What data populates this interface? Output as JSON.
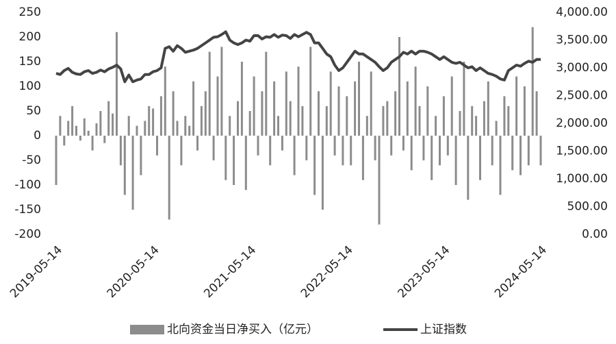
{
  "chart_data": {
    "type": "bar-line",
    "categories": [
      "2019-05-14",
      null,
      null,
      null,
      null,
      null,
      null,
      null,
      null,
      null,
      null,
      null,
      null,
      null,
      null,
      null,
      null,
      null,
      null,
      null,
      null,
      null,
      null,
      null,
      "2020-05-14",
      null,
      null,
      null,
      null,
      null,
      null,
      null,
      null,
      null,
      null,
      null,
      null,
      null,
      null,
      null,
      null,
      null,
      null,
      null,
      null,
      null,
      null,
      null,
      "2021-05-14",
      null,
      null,
      null,
      null,
      null,
      null,
      null,
      null,
      null,
      null,
      null,
      null,
      null,
      null,
      null,
      null,
      null,
      null,
      null,
      null,
      null,
      null,
      null,
      "2022-05-14",
      null,
      null,
      null,
      null,
      null,
      null,
      null,
      null,
      null,
      null,
      null,
      null,
      null,
      null,
      null,
      null,
      null,
      null,
      null,
      null,
      null,
      null,
      null,
      "2023-05-14",
      null,
      null,
      null,
      null,
      null,
      null,
      null,
      null,
      null,
      null,
      null,
      null,
      null,
      null,
      null,
      null,
      null,
      null,
      null,
      null,
      null,
      null,
      null,
      "2024-05-14"
    ],
    "series": [
      {
        "name": "北向资金当日净买入（亿元）",
        "color": "#8c8c8c",
        "values": [
          -100,
          40,
          -20,
          30,
          60,
          20,
          -10,
          35,
          10,
          -30,
          25,
          50,
          -15,
          70,
          45,
          210,
          -60,
          -120,
          40,
          -150,
          20,
          -80,
          30,
          60,
          55,
          -40,
          80,
          140,
          -170,
          90,
          30,
          -60,
          40,
          20,
          110,
          -30,
          60,
          90,
          170,
          -50,
          120,
          180,
          -90,
          40,
          -100,
          70,
          150,
          -110,
          50,
          120,
          -40,
          90,
          170,
          -60,
          110,
          40,
          -30,
          130,
          70,
          -80,
          140,
          60,
          -50,
          180,
          -120,
          90,
          -150,
          60,
          130,
          -40,
          100,
          -60,
          80,
          -60,
          110,
          150,
          -90,
          40,
          130,
          -50,
          -180,
          60,
          70,
          -40,
          90,
          200,
          -30,
          110,
          -70,
          140,
          60,
          -50,
          100,
          -90,
          40,
          -60,
          80,
          -40,
          120,
          -100,
          50,
          150,
          -130,
          60,
          40,
          -90,
          70,
          110,
          -60,
          30,
          -120,
          80,
          60,
          -70,
          120,
          -80,
          100,
          -60,
          220,
          90,
          -60
        ]
      },
      {
        "name": "上证指数",
        "color": "#444444",
        "axis": "y2",
        "values": [
          2900,
          2880,
          2950,
          2990,
          2920,
          2890,
          2880,
          2930,
          2950,
          2900,
          2920,
          2960,
          2930,
          2980,
          3010,
          3050,
          2980,
          2750,
          2870,
          2750,
          2780,
          2800,
          2880,
          2880,
          2930,
          2950,
          3000,
          3350,
          3380,
          3300,
          3400,
          3350,
          3280,
          3300,
          3320,
          3350,
          3400,
          3450,
          3500,
          3550,
          3560,
          3600,
          3650,
          3500,
          3450,
          3420,
          3450,
          3500,
          3480,
          3580,
          3580,
          3520,
          3560,
          3550,
          3600,
          3550,
          3590,
          3580,
          3530,
          3600,
          3560,
          3600,
          3640,
          3600,
          3450,
          3450,
          3350,
          3250,
          3200,
          3050,
          2950,
          3000,
          3100,
          3200,
          3300,
          3250,
          3250,
          3200,
          3150,
          3100,
          3020,
          2950,
          3000,
          3100,
          3150,
          3200,
          3280,
          3250,
          3300,
          3250,
          3300,
          3300,
          3280,
          3250,
          3200,
          3150,
          3200,
          3150,
          3100,
          3080,
          3100,
          3050,
          3000,
          3020,
          2950,
          3000,
          2950,
          2900,
          2880,
          2850,
          2800,
          2780,
          2950,
          3000,
          3050,
          3030,
          3080,
          3120,
          3100,
          3150,
          3150
        ]
      }
    ],
    "ylim": [
      -200,
      250
    ],
    "yticks": [
      -200,
      -150,
      -100,
      -50,
      0,
      50,
      100,
      150,
      200,
      250
    ],
    "y2lim": [
      0,
      4000
    ],
    "y2ticks": [
      {
        "value": 0,
        "label": "0.00"
      },
      {
        "value": 500,
        "label": "500.00"
      },
      {
        "value": 1000,
        "label": "1,000.00"
      },
      {
        "value": 1500,
        "label": "1,500.00"
      },
      {
        "value": 2000,
        "label": "2,000.00"
      },
      {
        "value": 2500,
        "label": "2,500.00"
      },
      {
        "value": 3000,
        "label": "3,000.00"
      },
      {
        "value": 3500,
        "label": "3,500.00"
      },
      {
        "value": 4000,
        "label": "4,000.00"
      }
    ]
  }
}
